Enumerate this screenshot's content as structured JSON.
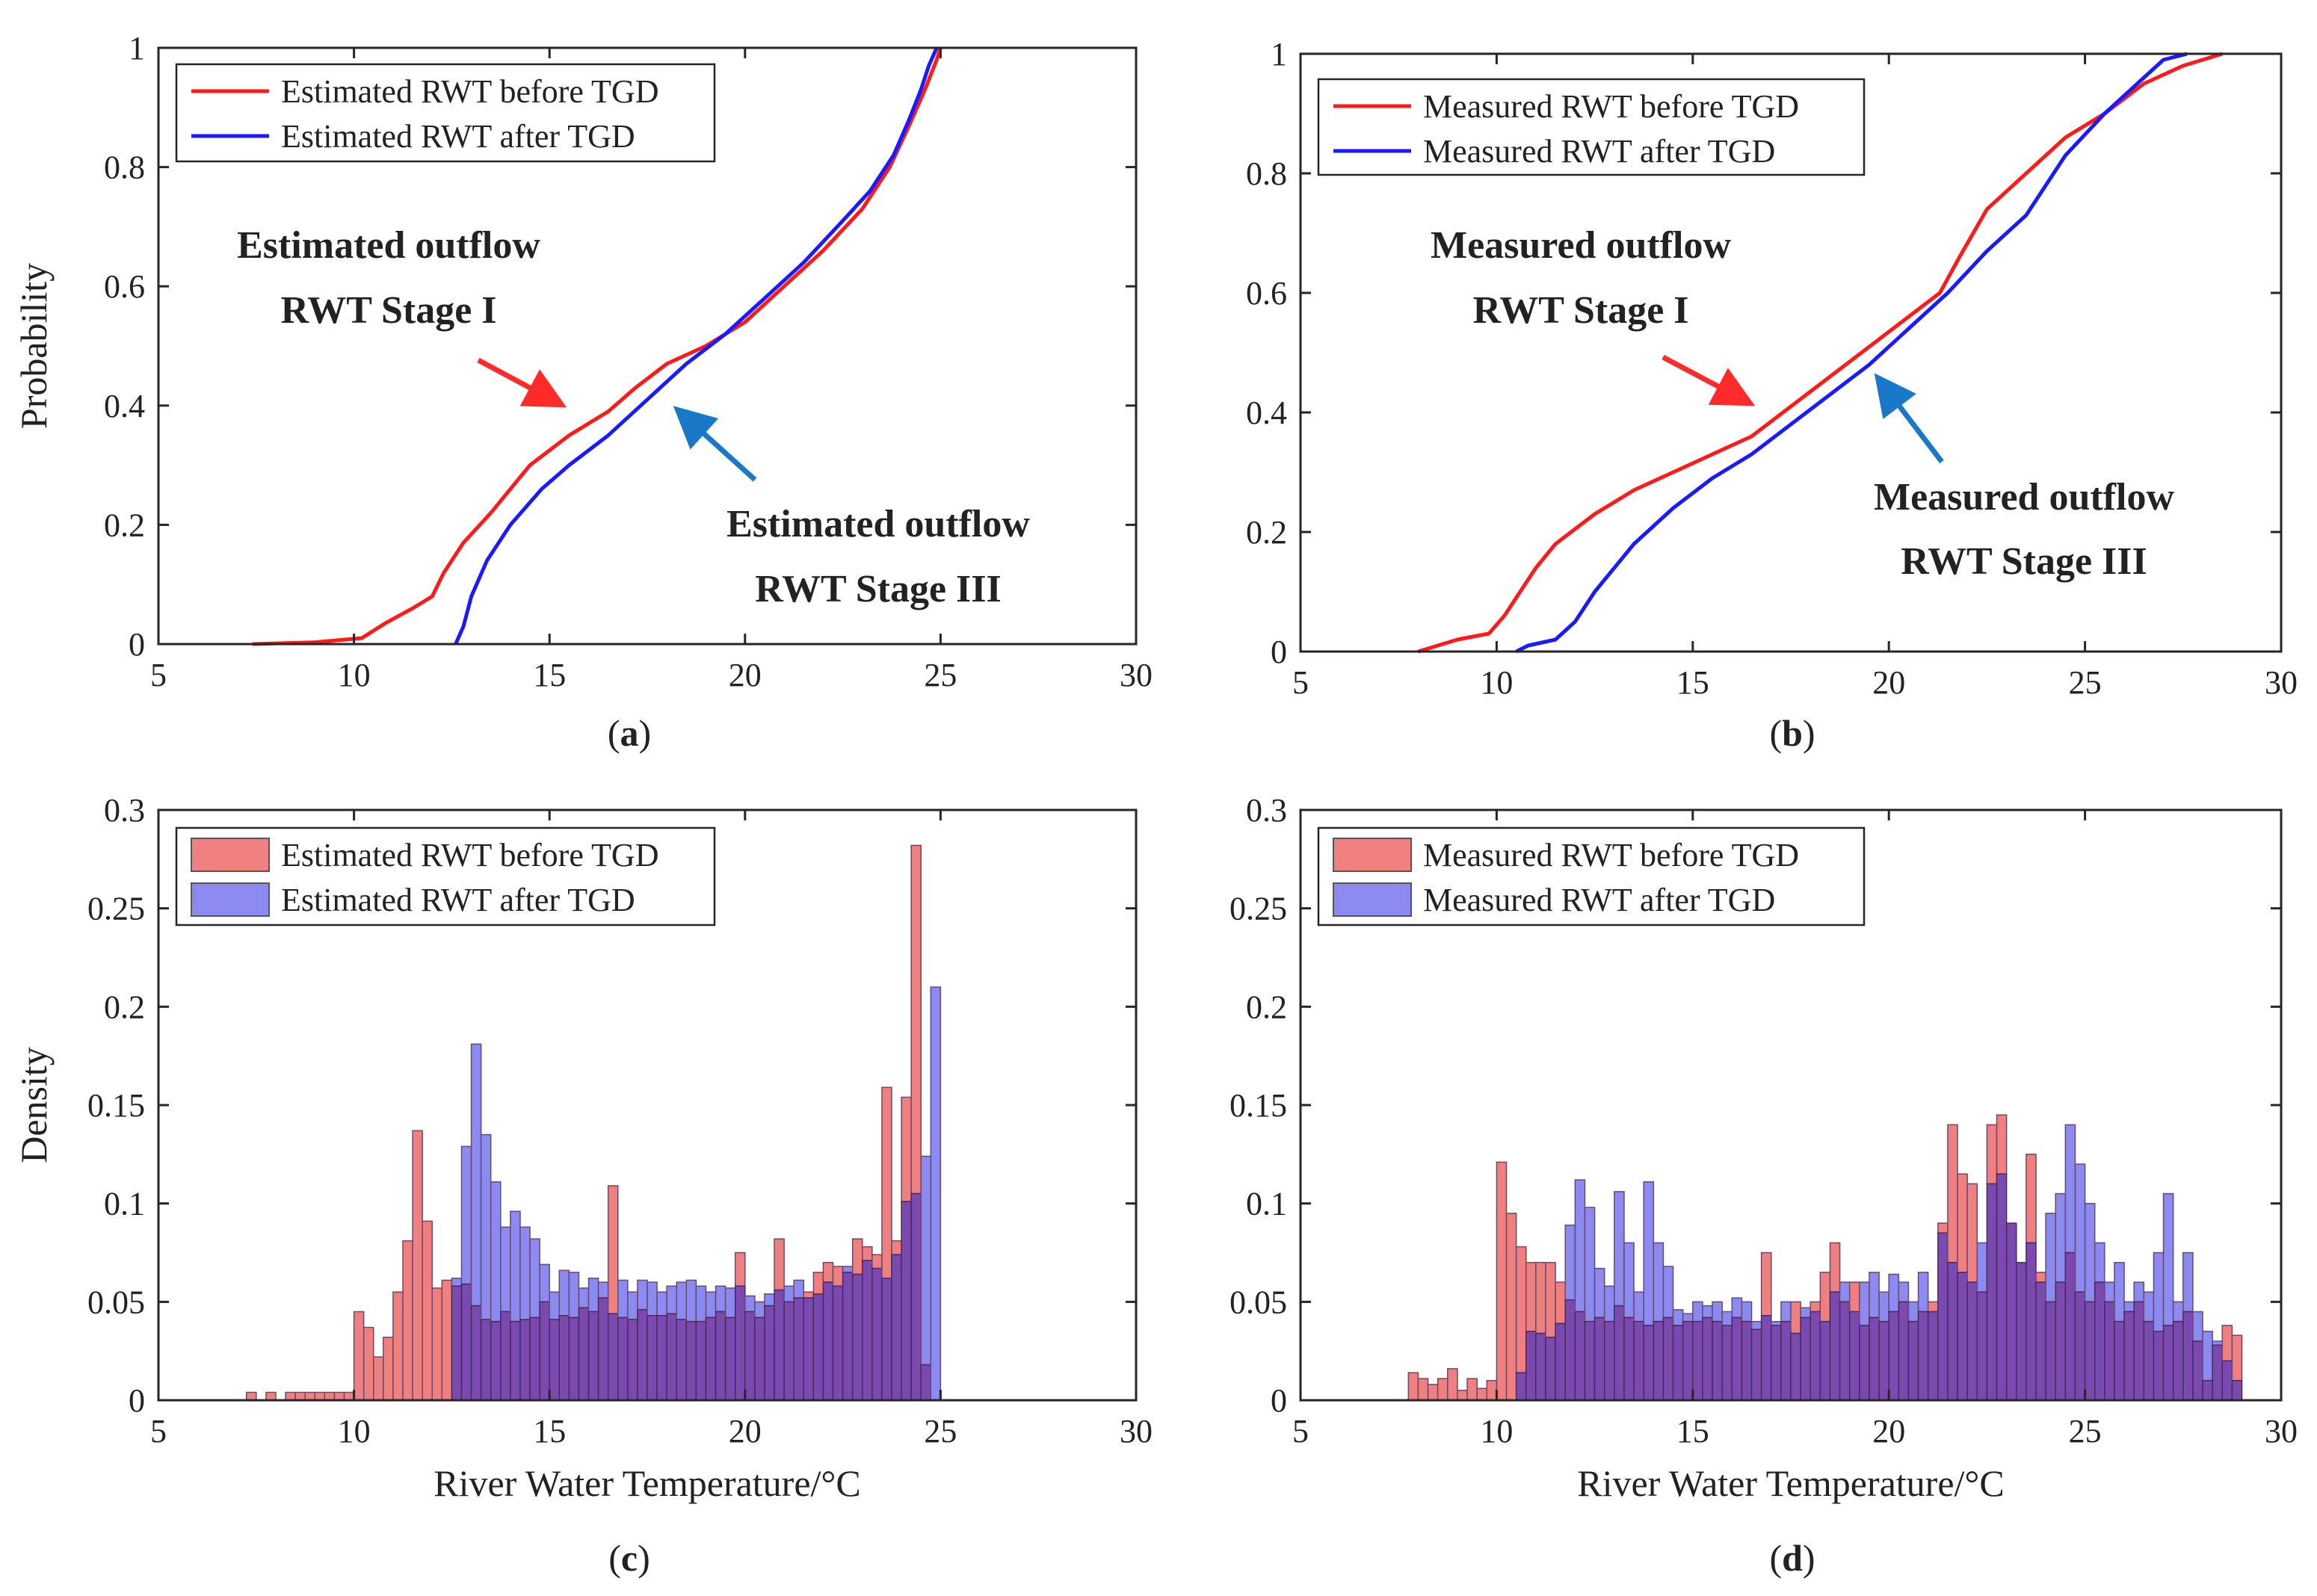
{
  "figure": {
    "colors": {
      "before_line": "#ff1a1a",
      "after_line": "#1a1aff",
      "before_fill": "#f08080",
      "after_fill": "#8a8af0",
      "overlap_fill": "#7a4ab0",
      "arrow_red": "#ff2a2a",
      "arrow_blue": "#1a78c8"
    },
    "captions": {
      "a": {
        "open": "(",
        "letter": "a",
        "close": ")"
      },
      "b": {
        "open": "(",
        "letter": "b",
        "close": ")"
      },
      "c": {
        "open": "(",
        "letter": "c",
        "close": ")"
      },
      "d": {
        "open": "(",
        "letter": "d",
        "close": ")"
      }
    },
    "annotations": {
      "a_stage1": [
        "Estimated outflow",
        "RWT Stage I"
      ],
      "a_stage3": [
        "Estimated outflow",
        "RWT Stage III"
      ],
      "b_stage1": [
        "Measured outflow",
        "RWT Stage I"
      ],
      "b_stage3": [
        "Measured outflow",
        "RWT Stage III"
      ]
    }
  },
  "chart_data": [
    {
      "id": "a",
      "type": "line",
      "subtype": "cdf",
      "title": "",
      "xlabel": "",
      "ylabel": "Probability",
      "xlim": [
        5,
        30
      ],
      "ylim": [
        0,
        1
      ],
      "xticks": [
        5,
        10,
        15,
        20,
        25,
        30
      ],
      "yticks": [
        0,
        0.2,
        0.4,
        0.6,
        0.8,
        1
      ],
      "ytick_labels": [
        "0",
        "0.2",
        "0.4",
        "0.6",
        "0.8",
        "1"
      ],
      "legend_position": "top-left",
      "series": [
        {
          "name": "Estimated RWT before TGD",
          "color": "#ff1a1a",
          "x": [
            7.4,
            9.0,
            10.2,
            10.8,
            11.5,
            12.0,
            12.3,
            12.8,
            13.5,
            14.5,
            15.5,
            16.5,
            17.2,
            18.0,
            19.0,
            20.0,
            21.0,
            22.0,
            23.0,
            23.7,
            24.2,
            24.6,
            24.9,
            25.0
          ],
          "y": [
            0.0,
            0.003,
            0.01,
            0.035,
            0.06,
            0.08,
            0.12,
            0.17,
            0.22,
            0.3,
            0.35,
            0.39,
            0.43,
            0.47,
            0.5,
            0.54,
            0.6,
            0.66,
            0.73,
            0.8,
            0.87,
            0.93,
            0.98,
            1.0
          ]
        },
        {
          "name": "Estimated RWT after TGD",
          "color": "#1a1aff",
          "x": [
            12.6,
            12.8,
            13.0,
            13.4,
            14.0,
            14.8,
            15.5,
            16.5,
            17.5,
            18.5,
            19.5,
            20.5,
            21.5,
            22.5,
            23.2,
            23.8,
            24.2,
            24.5,
            24.7,
            24.9
          ],
          "y": [
            0.0,
            0.03,
            0.08,
            0.14,
            0.2,
            0.26,
            0.3,
            0.35,
            0.41,
            0.47,
            0.52,
            0.58,
            0.64,
            0.71,
            0.76,
            0.82,
            0.88,
            0.93,
            0.97,
            1.0
          ]
        }
      ]
    },
    {
      "id": "b",
      "type": "line",
      "subtype": "cdf",
      "title": "",
      "xlabel": "",
      "ylabel": "",
      "xlim": [
        5,
        30
      ],
      "ylim": [
        0,
        1
      ],
      "xticks": [
        5,
        10,
        15,
        20,
        25,
        30
      ],
      "yticks": [
        0,
        0.2,
        0.4,
        0.6,
        0.8,
        1
      ],
      "ytick_labels": [
        "0",
        "0.2",
        "0.4",
        "0.6",
        "0.8",
        "1"
      ],
      "legend_position": "top-left",
      "series": [
        {
          "name": "Measured RWT before TGD",
          "color": "#ff1a1a",
          "x": [
            8.0,
            9.0,
            9.8,
            10.2,
            10.5,
            11.0,
            11.5,
            12.5,
            13.5,
            14.5,
            15.5,
            16.5,
            17.5,
            18.5,
            19.5,
            20.5,
            21.3,
            21.8,
            22.5,
            23.5,
            24.5,
            25.5,
            26.5,
            27.5,
            28.5
          ],
          "y": [
            0.0,
            0.02,
            0.03,
            0.06,
            0.09,
            0.14,
            0.18,
            0.23,
            0.27,
            0.3,
            0.33,
            0.36,
            0.41,
            0.46,
            0.51,
            0.56,
            0.6,
            0.66,
            0.74,
            0.8,
            0.86,
            0.9,
            0.95,
            0.98,
            1.0
          ]
        },
        {
          "name": "Measured RWT after TGD",
          "color": "#1a1aff",
          "x": [
            10.5,
            10.8,
            11.5,
            12.0,
            12.5,
            13.5,
            14.5,
            15.5,
            16.5,
            17.5,
            18.5,
            19.5,
            20.5,
            21.5,
            22.5,
            23.5,
            24.5,
            25.5,
            26.5,
            27.0,
            27.6
          ],
          "y": [
            0.0,
            0.01,
            0.02,
            0.05,
            0.1,
            0.18,
            0.24,
            0.29,
            0.33,
            0.38,
            0.43,
            0.48,
            0.54,
            0.6,
            0.67,
            0.73,
            0.83,
            0.9,
            0.96,
            0.99,
            1.0
          ]
        }
      ]
    },
    {
      "id": "c",
      "type": "bar",
      "subtype": "histogram",
      "title": "",
      "xlabel": "River Water Temperature/°C",
      "ylabel": "Density",
      "xlim": [
        5,
        30
      ],
      "ylim": [
        0,
        0.3
      ],
      "xticks": [
        5,
        10,
        15,
        20,
        25,
        30
      ],
      "yticks": [
        0,
        0.05,
        0.1,
        0.15,
        0.2,
        0.25,
        0.3
      ],
      "ytick_labels": [
        "0",
        "0.05",
        "0.1",
        "0.15",
        "0.2",
        "0.25",
        "0.3"
      ],
      "legend_position": "top-left",
      "bin_width": 0.25,
      "series": [
        {
          "name": "Estimated RWT before TGD",
          "color": "#f08080",
          "x_start": 7.25,
          "values": [
            0.004,
            0.0,
            0.004,
            0.0,
            0.004,
            0.004,
            0.004,
            0.004,
            0.004,
            0.004,
            0.004,
            0.045,
            0.037,
            0.022,
            0.032,
            0.055,
            0.081,
            0.137,
            0.091,
            0.057,
            0.061,
            0.058,
            0.059,
            0.048,
            0.041,
            0.04,
            0.045,
            0.04,
            0.041,
            0.042,
            0.05,
            0.041,
            0.043,
            0.042,
            0.047,
            0.045,
            0.052,
            0.109,
            0.042,
            0.041,
            0.046,
            0.043,
            0.043,
            0.044,
            0.041,
            0.04,
            0.04,
            0.042,
            0.045,
            0.042,
            0.075,
            0.045,
            0.042,
            0.048,
            0.082,
            0.05,
            0.052,
            0.055,
            0.065,
            0.07,
            0.068,
            0.065,
            0.082,
            0.078,
            0.074,
            0.159,
            0.081,
            0.154,
            0.282,
            0.018
          ]
        },
        {
          "name": "Estimated RWT after TGD",
          "color": "#8a8af0",
          "x_start": 12.5,
          "values": [
            0.062,
            0.129,
            0.181,
            0.135,
            0.111,
            0.088,
            0.096,
            0.088,
            0.082,
            0.069,
            0.055,
            0.066,
            0.065,
            0.057,
            0.062,
            0.06,
            0.044,
            0.061,
            0.055,
            0.061,
            0.06,
            0.055,
            0.058,
            0.06,
            0.061,
            0.058,
            0.055,
            0.058,
            0.057,
            0.058,
            0.053,
            0.05,
            0.054,
            0.056,
            0.058,
            0.061,
            0.052,
            0.054,
            0.06,
            0.058,
            0.068,
            0.064,
            0.071,
            0.067,
            0.062,
            0.074,
            0.101,
            0.105,
            0.124,
            0.21
          ]
        }
      ]
    },
    {
      "id": "d",
      "type": "bar",
      "subtype": "histogram",
      "title": "",
      "xlabel": "River Water Temperature/°C",
      "ylabel": "",
      "xlim": [
        5,
        30
      ],
      "ylim": [
        0,
        0.3
      ],
      "xticks": [
        5,
        10,
        15,
        20,
        25,
        30
      ],
      "yticks": [
        0,
        0.05,
        0.1,
        0.15,
        0.2,
        0.25,
        0.3
      ],
      "ytick_labels": [
        "0",
        "0.05",
        "0.1",
        "0.15",
        "0.2",
        "0.25",
        "0.3"
      ],
      "legend_position": "top-left",
      "bin_width": 0.25,
      "series": [
        {
          "name": "Measured RWT before TGD",
          "color": "#f08080",
          "x_start": 7.75,
          "values": [
            0.014,
            0.011,
            0.008,
            0.011,
            0.016,
            0.005,
            0.011,
            0.006,
            0.01,
            0.121,
            0.095,
            0.078,
            0.07,
            0.07,
            0.07,
            0.06,
            0.051,
            0.045,
            0.04,
            0.042,
            0.04,
            0.048,
            0.042,
            0.04,
            0.038,
            0.04,
            0.042,
            0.038,
            0.04,
            0.04,
            0.042,
            0.04,
            0.038,
            0.042,
            0.04,
            0.036,
            0.075,
            0.038,
            0.04,
            0.05,
            0.042,
            0.05,
            0.065,
            0.08,
            0.05,
            0.06,
            0.038,
            0.042,
            0.04,
            0.045,
            0.05,
            0.04,
            0.045,
            0.05,
            0.09,
            0.14,
            0.115,
            0.11,
            0.055,
            0.14,
            0.145,
            0.09,
            0.07,
            0.125,
            0.065,
            0.05,
            0.06,
            0.075,
            0.055,
            0.05,
            0.06,
            0.05,
            0.04,
            0.045,
            0.05,
            0.04,
            0.035,
            0.038,
            0.04,
            0.045,
            0.03,
            0.01,
            0.028,
            0.038,
            0.033
          ]
        },
        {
          "name": "Measured RWT after TGD",
          "color": "#8a8af0",
          "x_start": 10.5,
          "values": [
            0.014,
            0.035,
            0.034,
            0.032,
            0.039,
            0.089,
            0.112,
            0.098,
            0.067,
            0.058,
            0.106,
            0.08,
            0.055,
            0.111,
            0.08,
            0.068,
            0.046,
            0.044,
            0.05,
            0.048,
            0.05,
            0.045,
            0.052,
            0.05,
            0.04,
            0.043,
            0.04,
            0.05,
            0.034,
            0.047,
            0.045,
            0.04,
            0.055,
            0.06,
            0.045,
            0.06,
            0.065,
            0.055,
            0.064,
            0.06,
            0.05,
            0.065,
            0.045,
            0.085,
            0.07,
            0.065,
            0.06,
            0.08,
            0.11,
            0.115,
            0.09,
            0.07,
            0.08,
            0.06,
            0.095,
            0.105,
            0.14,
            0.12,
            0.1,
            0.08,
            0.06,
            0.07,
            0.05,
            0.06,
            0.055,
            0.075,
            0.105,
            0.05,
            0.075,
            0.045,
            0.035,
            0.03,
            0.02,
            0.01
          ]
        }
      ]
    }
  ]
}
